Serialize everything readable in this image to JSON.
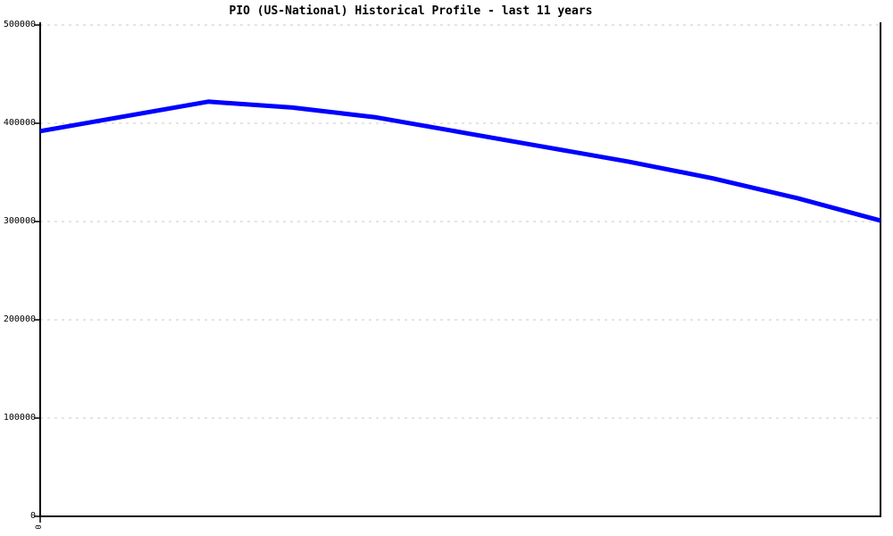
{
  "chart_data": {
    "type": "line",
    "title": "PIO (US-National) Historical Profile - last 11 years",
    "values": [
      392000,
      407000,
      422000,
      416000,
      406000,
      391000,
      376000,
      361000,
      344000,
      324000,
      301000
    ],
    "num_points": 11,
    "xlabel": "",
    "ylabel": "",
    "ylim": [
      0,
      500000
    ],
    "y_ticks": [
      0,
      100000,
      200000,
      300000,
      400000,
      500000
    ],
    "y_tick_labels": [
      "0",
      "100000",
      "200000",
      "300000",
      "400000",
      "500000"
    ],
    "x_tick_labels_visible": [
      "0"
    ],
    "grid": "horizontal-dashed",
    "legend": "none",
    "line_color": "#0000ff",
    "grid_color": "#c8c8c8",
    "axis_color": "#000000",
    "background_color": "#ffffff"
  }
}
